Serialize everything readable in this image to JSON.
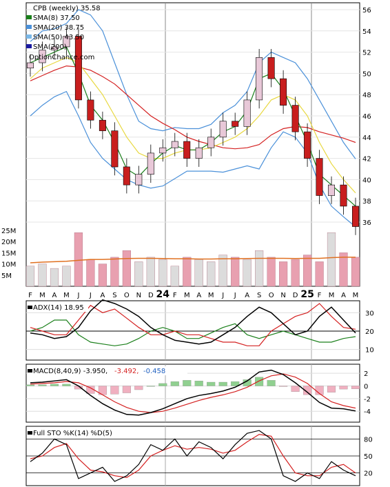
{
  "price_panel": {
    "symbol_label": "CPB (weekly) 35.58",
    "legend": [
      {
        "label": "SMA(8) 37.50",
        "color": "#1a7f1a"
      },
      {
        "label": "SMA(20) 38.75",
        "color": "#4a90d9"
      },
      {
        "label": "SMA(50) 43.50",
        "color": "#7ab8e8"
      },
      {
        "label": "SMA(200)",
        "color": "#1a1aa0"
      }
    ],
    "watermark": "OptionChance.com",
    "y_ticks": [
      "56",
      "54",
      "52",
      "50",
      "48",
      "46",
      "44",
      "42",
      "40",
      "38",
      "36"
    ],
    "volume_ticks": [
      "25M",
      "20M",
      "15M",
      "10M",
      "5M"
    ]
  },
  "x_axis": {
    "labels": [
      "F",
      "M",
      "A",
      "M",
      "J",
      "J",
      "A",
      "S",
      "O",
      "N",
      "D",
      "24",
      "F",
      "M",
      "A",
      "M",
      "J",
      "J",
      "A",
      "S",
      "O",
      "N",
      "D",
      "25",
      "F",
      "M",
      "A",
      "M"
    ]
  },
  "adx_panel": {
    "label": "ADX(14) 18.95",
    "y_ticks": [
      "30",
      "20",
      "10"
    ]
  },
  "macd_panel": {
    "label": "MACD(8,40,9) -3.950,",
    "signal_value": "-3.492,",
    "hist_value": "-0.458",
    "y_ticks": [
      "2",
      "0",
      "-2",
      "-4"
    ]
  },
  "sto_panel": {
    "label": "Full STO %K(14) %D(5)",
    "y_ticks": [
      "80",
      "50",
      "20"
    ]
  },
  "colors": {
    "up_candle": "#e8c8d8",
    "down_candle": "#c81e1e",
    "sma8": "#1a7f1a",
    "sma20": "#4a90d9",
    "sma50": "#d42020",
    "bb": "#4a90d9",
    "bb_yellow": "#e8d840",
    "volume": "#e8a0b0",
    "volume_ma": "#e07020",
    "macd_pos": "#90d090",
    "macd_neg": "#f0b0c0"
  },
  "chart_data": [
    {
      "type": "candlestick",
      "title": "CPB (weekly) 35.58",
      "ylim": [
        35,
        57
      ],
      "x": [
        "2023-02",
        "2023-03",
        "2023-04",
        "2023-05",
        "2023-06",
        "2023-07",
        "2023-08",
        "2023-09",
        "2023-10",
        "2023-11",
        "2023-12",
        "2024-01",
        "2024-02",
        "2024-03",
        "2024-04",
        "2024-05",
        "2024-06",
        "2024-07",
        "2024-08",
        "2024-09",
        "2024-10",
        "2024-11",
        "2024-12",
        "2025-01",
        "2025-02",
        "2025-03",
        "2025-04",
        "2025-05"
      ],
      "close": [
        51.0,
        52.2,
        52.5,
        53.5,
        47.5,
        45.6,
        44.6,
        41.2,
        39.5,
        40.5,
        42.5,
        43.0,
        43.6,
        42.0,
        43.0,
        44.0,
        45.5,
        45.0,
        47.5,
        51.5,
        49.5,
        47.0,
        44.5,
        42.0,
        38.5,
        39.5,
        37.5,
        35.58
      ],
      "series": [
        {
          "name": "SMA(8) 37.50",
          "values": [
            51.0,
            51.5,
            52.0,
            52.5,
            50.0,
            47.0,
            45.6,
            43.5,
            41.0,
            40.3,
            41.5,
            42.5,
            43.2,
            42.8,
            42.8,
            43.5,
            44.5,
            45.0,
            46.5,
            49.5,
            50.0,
            48.5,
            46.0,
            43.5,
            40.5,
            39.5,
            38.5,
            37.5
          ]
        },
        {
          "name": "SMA(20) 38.75",
          "values": [
            49.5,
            50.5,
            51.0,
            51.5,
            51.0,
            49.5,
            48.0,
            46.0,
            44.0,
            42.5,
            42.0,
            42.0,
            42.5,
            42.8,
            42.8,
            43.0,
            43.5,
            44.0,
            44.8,
            46.0,
            47.5,
            48.0,
            47.5,
            46.0,
            43.5,
            41.5,
            40.0,
            38.75
          ]
        },
        {
          "name": "SMA(50) 43.50",
          "values": [
            49.3,
            49.8,
            50.3,
            50.7,
            50.6,
            50.3,
            49.7,
            49.0,
            48.0,
            47.0,
            46.0,
            45.3,
            44.7,
            44.0,
            43.6,
            43.3,
            43.0,
            42.9,
            43.0,
            43.3,
            44.2,
            44.8,
            45.0,
            44.9,
            44.5,
            44.2,
            43.9,
            43.5
          ]
        }
      ]
    },
    {
      "type": "bar",
      "title": "Volume",
      "ylim": [
        0,
        25
      ],
      "values": [
        9.0,
        10.0,
        8.0,
        9.0,
        24.0,
        12.0,
        10.0,
        13.0,
        16.0,
        11.0,
        13.0,
        12.0,
        9.0,
        13.0,
        12.0,
        11.0,
        14.0,
        13.0,
        12.0,
        16.0,
        13.0,
        11.0,
        12.0,
        14.0,
        11.0,
        24.0,
        15.0,
        13.0
      ],
      "series": [
        {
          "name": "",
          "values": [
            10.5,
            10.8,
            11.0,
            11.2,
            11.6,
            12.0,
            12.0,
            12.2,
            12.4,
            12.5,
            12.5,
            12.4,
            12.3,
            12.3,
            12.2,
            12.2,
            12.3,
            12.3,
            12.4,
            12.5,
            12.5,
            12.5,
            12.4,
            12.5,
            12.5,
            12.8,
            13.0,
            13.0
          ]
        }
      ]
    },
    {
      "type": "line",
      "title": "ADX(14) 18.95",
      "ylim": [
        5,
        35
      ],
      "series": [
        {
          "name": "",
          "values": [
            19,
            18,
            16,
            17,
            22,
            31,
            37,
            35,
            32,
            28,
            22,
            18,
            15,
            14,
            13,
            14,
            18,
            22,
            28,
            33,
            30,
            24,
            18,
            20,
            28,
            33,
            26,
            18.95
          ]
        },
        {
          "name": "",
          "values": [
            20,
            22,
            26,
            26,
            18,
            14,
            13,
            12,
            13,
            16,
            20,
            22,
            20,
            16,
            16,
            19,
            22,
            24,
            18,
            16,
            18,
            20,
            18,
            16,
            14,
            14,
            16,
            17
          ]
        },
        {
          "name": "",
          "values": [
            22,
            20,
            18,
            18,
            26,
            34,
            30,
            32,
            27,
            22,
            18,
            18,
            20,
            18,
            18,
            16,
            14,
            14,
            12,
            12,
            20,
            24,
            28,
            30,
            35,
            28,
            22,
            21
          ]
        }
      ]
    },
    {
      "type": "line",
      "title": "MACD(8,40,9)",
      "ylim": [
        -5.5,
        3
      ],
      "series": [
        {
          "name": "",
          "values": [
            0.5,
            0.6,
            0.8,
            1.0,
            0.0,
            -1.5,
            -2.8,
            -3.8,
            -4.5,
            -4.6,
            -4.2,
            -3.6,
            -2.8,
            -2.0,
            -1.5,
            -1.2,
            -0.8,
            -0.2,
            0.8,
            2.2,
            2.5,
            1.8,
            0.5,
            -1.0,
            -2.6,
            -3.5,
            -3.6,
            -3.95
          ]
        },
        {
          "name": "",
          "values": [
            0.3,
            0.4,
            0.5,
            0.7,
            0.5,
            -0.3,
            -1.4,
            -2.5,
            -3.4,
            -4.0,
            -4.2,
            -4.0,
            -3.5,
            -2.9,
            -2.3,
            -1.8,
            -1.4,
            -0.9,
            -0.2,
            0.8,
            1.6,
            1.9,
            1.4,
            0.4,
            -1.2,
            -2.5,
            -3.1,
            -3.492
          ]
        },
        {
          "name": "",
          "values": [
            0.2,
            0.2,
            0.3,
            0.3,
            -0.5,
            -1.2,
            -1.4,
            -1.3,
            -1.1,
            -0.6,
            0.0,
            0.4,
            0.7,
            0.9,
            0.8,
            0.6,
            0.6,
            0.7,
            1.0,
            1.4,
            0.9,
            -0.1,
            -0.9,
            -1.4,
            -1.4,
            -1.0,
            -0.5,
            -0.458
          ]
        }
      ]
    },
    {
      "type": "line",
      "title": "Full STO %K(14) %D(5)",
      "ylim": [
        0,
        100
      ],
      "series": [
        {
          "name": "",
          "values": [
            40,
            55,
            80,
            70,
            10,
            20,
            30,
            5,
            15,
            35,
            70,
            60,
            80,
            50,
            75,
            65,
            45,
            70,
            90,
            95,
            80,
            15,
            5,
            20,
            10,
            40,
            25,
            15
          ]
        },
        {
          "name": "",
          "values": [
            45,
            50,
            65,
            72,
            45,
            25,
            22,
            15,
            12,
            25,
            50,
            60,
            68,
            62,
            65,
            62,
            55,
            60,
            75,
            88,
            85,
            50,
            20,
            15,
            15,
            30,
            35,
            20
          ]
        }
      ]
    }
  ]
}
